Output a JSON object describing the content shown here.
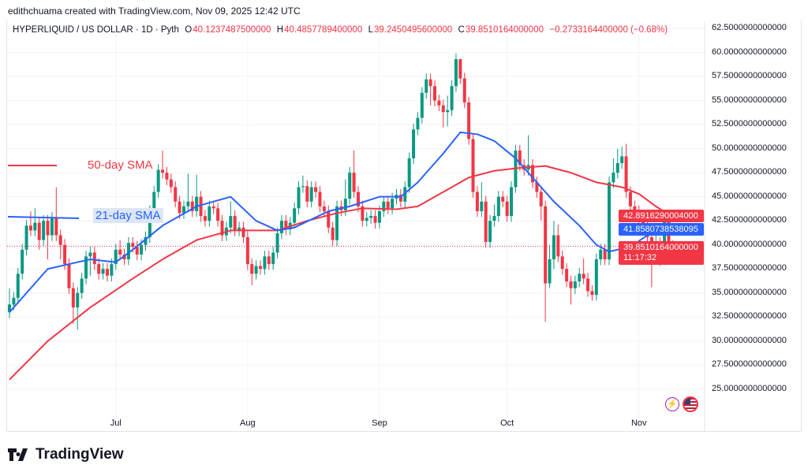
{
  "credit": "edithchuama created with TradingView.com, Nov 09, 2025 12:42 UTC",
  "legend": {
    "symbol": "HYPERLIQUID / US DOLLAR · 1D · Pyth",
    "o_label": "O",
    "o": "40.1237487500000",
    "h_label": "H",
    "h": "40.4857789400000",
    "l_label": "L",
    "l": "39.2450495600000",
    "c_label": "C",
    "c": "39.8510164000000",
    "change": "−0.2733164400000 (−0.68%)"
  },
  "annotations": {
    "sma50": "50-day SMA",
    "sma21": "21-day SMA"
  },
  "price_tags": {
    "sma50": "42.8916290004000",
    "sma21": "41.8580738538095",
    "last": "39.8510164000000",
    "countdown": "11:17:32"
  },
  "logo": "TradingView",
  "colors": {
    "up": "#089981",
    "down": "#f23645",
    "sma21": "#2962ff",
    "sma50": "#f23645"
  },
  "chart_data": {
    "type": "candlestick",
    "ylim": [
      22.5,
      63
    ],
    "y_ticks": [
      "62.5000000000000",
      "60.0000000000000",
      "57.5000000000000",
      "55.0000000000000",
      "52.5000000000000",
      "50.0000000000000",
      "47.5000000000000",
      "45.0000000000000",
      "42.5000000000000",
      "40.0000000000000",
      "37.5000000000000",
      "35.0000000000000",
      "32.5000000000000",
      "30.0000000000000",
      "27.5000000000000",
      "25.0000000000000"
    ],
    "x_ticks": [
      {
        "label": "Jul",
        "date": "2025-07-01"
      },
      {
        "label": "Aug",
        "date": "2025-08-01"
      },
      {
        "label": "Sep",
        "date": "2025-09-01"
      },
      {
        "label": "Oct",
        "date": "2025-10-01"
      },
      {
        "label": "Nov",
        "date": "2025-11-01"
      }
    ],
    "dates": [
      "2025-06-06",
      "2025-11-09"
    ],
    "open_first": 33.0,
    "close": [
      33.8,
      34.5,
      37,
      39.5,
      42,
      41.5,
      42.3,
      40.5,
      42.5,
      41,
      42.8,
      41,
      40,
      38,
      35.5,
      33.5,
      35,
      36.5,
      38.8,
      39.2,
      38,
      37,
      37.5,
      36.8,
      38,
      39.5,
      39,
      38.5,
      40.2,
      39.8,
      39,
      40,
      40.8,
      43.5,
      45.5,
      47.8,
      47.5,
      46.8,
      46,
      44.5,
      43.3,
      44,
      44.5,
      43.5,
      45,
      43,
      42.5,
      44,
      43.8,
      42.5,
      41,
      41.8,
      43,
      41.5,
      41.8,
      40.8,
      38,
      37,
      37.8,
      37.5,
      38.8,
      38,
      39.2,
      41.2,
      42.5,
      41.6,
      42.3,
      43.8,
      46,
      46.1,
      44.5,
      46,
      45.5,
      44,
      43.5,
      41.8,
      40.5,
      44,
      43.6,
      44.8,
      47.5,
      45.5,
      44,
      42.5,
      42.8,
      43,
      42.3,
      43.5,
      44.5,
      43.8,
      44.8,
      45.2,
      44.5,
      46,
      49,
      52,
      53.2,
      55.8,
      57.2,
      56.5,
      55,
      54.5,
      53.8,
      54,
      56.5,
      59.3,
      57.3,
      54.8,
      51,
      45.5,
      43.5,
      44.5,
      40.3,
      42.5,
      43,
      45,
      44.5,
      43,
      46,
      49.8,
      48.3,
      47.8,
      48.3,
      46.5,
      45.5,
      44,
      36,
      38.5,
      41,
      38.8,
      37.5,
      36.2,
      35.5,
      36.2,
      37,
      36.5,
      35.2,
      34.8,
      38.5,
      39.5,
      38.5,
      46.5,
      47.5,
      48.5,
      49.2,
      45.5,
      44,
      43.5,
      42.8,
      42,
      40.8,
      39.2,
      40.2,
      38.5,
      42.5,
      40.12,
      39.85
    ],
    "high": [
      35.5,
      35.1,
      37.6,
      40.1,
      42.6,
      43.5,
      43.8,
      42.9,
      43.1,
      43.1,
      43.4,
      46,
      41.6,
      40.6,
      38.6,
      36.1,
      35.6,
      37.1,
      39.4,
      39.8,
      39.8,
      38.6,
      38.1,
      38.1,
      38.6,
      40.1,
      40.5,
      39.6,
      40.8,
      40.8,
      40.4,
      40.6,
      41.4,
      44.1,
      46.1,
      48.4,
      49.8,
      48.1,
      47.4,
      46.6,
      45.1,
      44.6,
      47.4,
      45.1,
      47.3,
      45.6,
      43.6,
      44.6,
      44.6,
      44.4,
      43.1,
      42.4,
      44.5,
      43.6,
      42.4,
      42.4,
      41.4,
      38.6,
      38.4,
      38.4,
      39.4,
      39.4,
      39.8,
      41.8,
      43.1,
      43.1,
      42.9,
      44.4,
      46.6,
      47.2,
      46.7,
      46.6,
      46.6,
      46.1,
      44.6,
      44.1,
      42.4,
      44.6,
      44.6,
      46.8,
      48.1,
      49.8,
      46.1,
      44.6,
      43.4,
      43.6,
      43.6,
      44.1,
      45.1,
      45.1,
      45.4,
      45.8,
      45.8,
      46.6,
      49.6,
      52.6,
      53.8,
      56.4,
      57.8,
      57.8,
      57.1,
      55.6,
      55.1,
      55.5,
      57.1,
      59.9,
      59.3,
      57.9,
      55.4,
      51.6,
      46.1,
      46.5,
      45.1,
      43.1,
      44.2,
      45.6,
      45.6,
      45.1,
      46.6,
      50.4,
      50.4,
      48.9,
      51.4,
      48.9,
      47.1,
      46.1,
      44.6,
      40,
      42.5,
      42.1,
      39.4,
      38.1,
      36.8,
      36.8,
      37.6,
      38.6,
      37.1,
      35.8,
      39.1,
      40.1,
      40.1,
      47.1,
      49,
      50,
      50.2,
      50.5,
      46.1,
      44.6,
      44.1,
      43.4,
      42.6,
      41.4,
      41.5,
      40.8,
      43.1,
      43,
      40.49
    ],
    "low": [
      32.4,
      33.2,
      33.9,
      36.4,
      38.9,
      40.9,
      40.9,
      39.5,
      39.9,
      38.5,
      40.4,
      40.4,
      38.5,
      37.4,
      34.9,
      31.8,
      31.2,
      34.4,
      35.9,
      36.8,
      37.4,
      36.4,
      36.4,
      36.2,
      36.2,
      37.4,
      38.4,
      37.9,
      37.9,
      39.2,
      38.4,
      38.4,
      39.4,
      40.2,
      42.9,
      44.9,
      46.9,
      46.2,
      45.4,
      43.9,
      42.7,
      42.7,
      43.4,
      42.9,
      42.9,
      42.4,
      41.9,
      41.9,
      43.2,
      41.9,
      40.4,
      40.4,
      41.2,
      40.9,
      40.9,
      40.2,
      37.4,
      35.8,
      36.4,
      36.9,
      36.9,
      37.4,
      37.4,
      38.6,
      40.6,
      41,
      41,
      41.7,
      43.2,
      45.4,
      43.9,
      43.9,
      44.9,
      43.4,
      42.9,
      41.2,
      39.9,
      39.9,
      43,
      43,
      44.2,
      44.9,
      43.4,
      41.9,
      41.9,
      42.2,
      41.7,
      41.7,
      42.9,
      43.2,
      43.2,
      44.2,
      43.9,
      43.9,
      45.4,
      48.4,
      51.4,
      52.6,
      55.2,
      54.5,
      54.4,
      53.9,
      52.2,
      52.3,
      53.4,
      55.9,
      56.7,
      54.2,
      50.4,
      44.9,
      42.9,
      42.9,
      39.7,
      39.7,
      41.9,
      42.4,
      43.9,
      42.4,
      42.4,
      45.4,
      47.7,
      47.2,
      47.2,
      45.9,
      44.9,
      42.5,
      32,
      35.5,
      37.5,
      38.2,
      36.9,
      35.6,
      33.8,
      34.9,
      35.6,
      35.9,
      34.6,
      34.2,
      34.2,
      37.9,
      37.9,
      37.9,
      45.9,
      46.9,
      47.9,
      44.9,
      43.4,
      42.9,
      42.2,
      41.4,
      40.2,
      35.6,
      38.3,
      37.8,
      37.9,
      39.6,
      39.25
    ],
    "sma21": [
      [
        "2025-06-06",
        33
      ],
      [
        "2025-06-15",
        37.5
      ],
      [
        "2025-06-25",
        38.5
      ],
      [
        "2025-07-01",
        38.2
      ],
      [
        "2025-07-05",
        39.5
      ],
      [
        "2025-07-12",
        42
      ],
      [
        "2025-07-20",
        44
      ],
      [
        "2025-07-28",
        45
      ],
      [
        "2025-08-03",
        42.5
      ],
      [
        "2025-08-08",
        41.5
      ],
      [
        "2025-08-12",
        41.8
      ],
      [
        "2025-08-20",
        43.5
      ],
      [
        "2025-08-25",
        44
      ],
      [
        "2025-09-01",
        45
      ],
      [
        "2025-09-06",
        45
      ],
      [
        "2025-09-10",
        46.5
      ],
      [
        "2025-09-16",
        49.5
      ],
      [
        "2025-09-20",
        51.7
      ],
      [
        "2025-09-24",
        51.5
      ],
      [
        "2025-09-28",
        50.8
      ],
      [
        "2025-10-03",
        49
      ],
      [
        "2025-10-07",
        47
      ],
      [
        "2025-10-12",
        44.5
      ],
      [
        "2025-10-18",
        42
      ],
      [
        "2025-10-22",
        40
      ],
      [
        "2025-10-25",
        39.3
      ],
      [
        "2025-10-30",
        39.8
      ],
      [
        "2025-11-03",
        41
      ],
      [
        "2025-11-09",
        41.86
      ]
    ],
    "sma50": [
      [
        "2025-06-06",
        26
      ],
      [
        "2025-06-15",
        30
      ],
      [
        "2025-06-25",
        33.5
      ],
      [
        "2025-07-05",
        36.5
      ],
      [
        "2025-07-12",
        38.5
      ],
      [
        "2025-07-20",
        40.5
      ],
      [
        "2025-07-28",
        41.5
      ],
      [
        "2025-08-03",
        41.5
      ],
      [
        "2025-08-08",
        41.5
      ],
      [
        "2025-08-15",
        42.5
      ],
      [
        "2025-08-22",
        43.3
      ],
      [
        "2025-08-28",
        43.8
      ],
      [
        "2025-09-05",
        43.7
      ],
      [
        "2025-09-10",
        44
      ],
      [
        "2025-09-16",
        45.5
      ],
      [
        "2025-09-22",
        47
      ],
      [
        "2025-09-28",
        47.7
      ],
      [
        "2025-10-04",
        48
      ],
      [
        "2025-10-10",
        48.2
      ],
      [
        "2025-10-16",
        47.5
      ],
      [
        "2025-10-22",
        46.5
      ],
      [
        "2025-10-28",
        46
      ],
      [
        "2025-11-01",
        45.3
      ],
      [
        "2025-11-05",
        44
      ],
      [
        "2025-11-09",
        42.89
      ]
    ],
    "grid": true
  }
}
